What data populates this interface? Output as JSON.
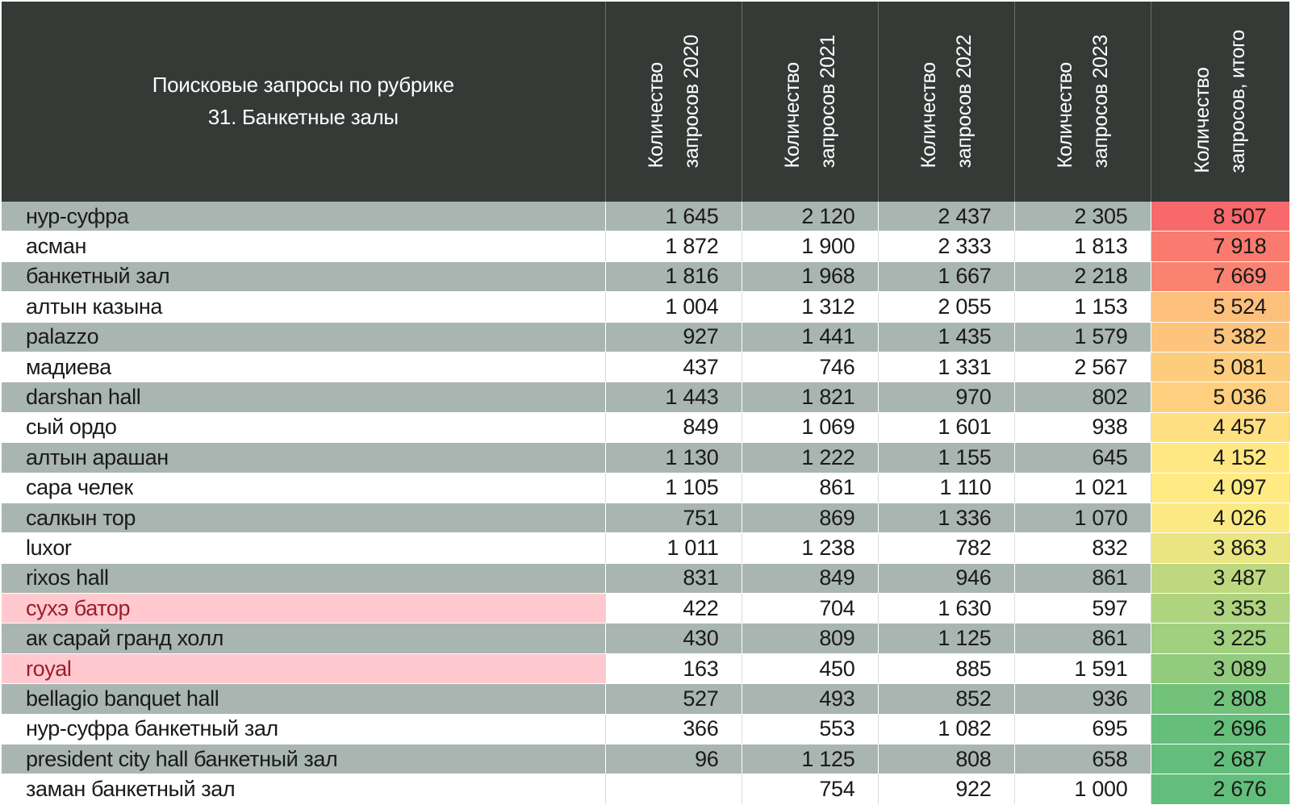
{
  "chart_data": {
    "type": "table",
    "title_line1": "Поисковые запросы по рубрике",
    "title_line2": "31. Банкетные залы",
    "columns": [
      {
        "line1": "Количество",
        "line2": "запросов 2020"
      },
      {
        "line1": "Количество",
        "line2": "запросов 2021"
      },
      {
        "line1": "Количество",
        "line2": "запросов 2022"
      },
      {
        "line1": "Количество",
        "line2": "запросов 2023"
      },
      {
        "line1": "Количество",
        "line2": "запросов, итого"
      }
    ],
    "rows": [
      {
        "name": "нур-суфра",
        "v2020": "1 645",
        "v2021": "2 120",
        "v2022": "2 437",
        "v2023": "2 305",
        "total": "8 507",
        "total_value": 8507,
        "highlight": false
      },
      {
        "name": "асман",
        "v2020": "1 872",
        "v2021": "1 900",
        "v2022": "2 333",
        "v2023": "1 813",
        "total": "7 918",
        "total_value": 7918,
        "highlight": false
      },
      {
        "name": "банкетный зал",
        "v2020": "1 816",
        "v2021": "1 968",
        "v2022": "1 667",
        "v2023": "2 218",
        "total": "7 669",
        "total_value": 7669,
        "highlight": false
      },
      {
        "name": "алтын казына",
        "v2020": "1 004",
        "v2021": "1 312",
        "v2022": "2 055",
        "v2023": "1 153",
        "total": "5 524",
        "total_value": 5524,
        "highlight": false
      },
      {
        "name": "palazzo",
        "v2020": "927",
        "v2021": "1 441",
        "v2022": "1 435",
        "v2023": "1 579",
        "total": "5 382",
        "total_value": 5382,
        "highlight": false
      },
      {
        "name": "мадиева",
        "v2020": "437",
        "v2021": "746",
        "v2022": "1 331",
        "v2023": "2 567",
        "total": "5 081",
        "total_value": 5081,
        "highlight": false
      },
      {
        "name": "darshan hall",
        "v2020": "1 443",
        "v2021": "1 821",
        "v2022": "970",
        "v2023": "802",
        "total": "5 036",
        "total_value": 5036,
        "highlight": false
      },
      {
        "name": "сый ордо",
        "v2020": "849",
        "v2021": "1 069",
        "v2022": "1 601",
        "v2023": "938",
        "total": "4 457",
        "total_value": 4457,
        "highlight": false
      },
      {
        "name": "алтын арашан",
        "v2020": "1 130",
        "v2021": "1 222",
        "v2022": "1 155",
        "v2023": "645",
        "total": "4 152",
        "total_value": 4152,
        "highlight": false
      },
      {
        "name": "сара челек",
        "v2020": "1 105",
        "v2021": "861",
        "v2022": "1 110",
        "v2023": "1 021",
        "total": "4 097",
        "total_value": 4097,
        "highlight": false
      },
      {
        "name": "салкын тор",
        "v2020": "751",
        "v2021": "869",
        "v2022": "1 336",
        "v2023": "1 070",
        "total": "4 026",
        "total_value": 4026,
        "highlight": false
      },
      {
        "name": "luxor",
        "v2020": "1 011",
        "v2021": "1 238",
        "v2022": "782",
        "v2023": "832",
        "total": "3 863",
        "total_value": 3863,
        "highlight": false
      },
      {
        "name": "rixos hall",
        "v2020": "831",
        "v2021": "849",
        "v2022": "946",
        "v2023": "861",
        "total": "3 487",
        "total_value": 3487,
        "highlight": false
      },
      {
        "name": "сухэ батор",
        "v2020": "422",
        "v2021": "704",
        "v2022": "1 630",
        "v2023": "597",
        "total": "3 353",
        "total_value": 3353,
        "highlight": true
      },
      {
        "name": "ак сарай гранд холл",
        "v2020": "430",
        "v2021": "809",
        "v2022": "1 125",
        "v2023": "861",
        "total": "3 225",
        "total_value": 3225,
        "highlight": false
      },
      {
        "name": "royal",
        "v2020": "163",
        "v2021": "450",
        "v2022": "885",
        "v2023": "1 591",
        "total": "3 089",
        "total_value": 3089,
        "highlight": true
      },
      {
        "name": "bellagio banquet hall",
        "v2020": "527",
        "v2021": "493",
        "v2022": "852",
        "v2023": "936",
        "total": "2 808",
        "total_value": 2808,
        "highlight": false
      },
      {
        "name": "нур-суфра банкетный зал",
        "v2020": "366",
        "v2021": "553",
        "v2022": "1 082",
        "v2023": "695",
        "total": "2 696",
        "total_value": 2696,
        "highlight": false
      },
      {
        "name": "president city hall банкетный зал",
        "v2020": "96",
        "v2021": "1 125",
        "v2022": "808",
        "v2023": "658",
        "total": "2 687",
        "total_value": 2687,
        "highlight": false
      },
      {
        "name": "заман банкетный зал",
        "v2020": "",
        "v2021": "754",
        "v2022": "922",
        "v2023": "1 000",
        "total": "2 676",
        "total_value": 2676,
        "highlight": false
      }
    ],
    "colors": {
      "header_bg": "#353a37",
      "row_alt_bg": "#a9b5b1",
      "row_plain_bg": "#ffffff",
      "highlight_bg": "#ffc9cf",
      "highlight_text": "#9c1c2a",
      "scale_high": "#f8696b",
      "scale_mid": "#ffeb84",
      "scale_low": "#63be7b"
    }
  }
}
